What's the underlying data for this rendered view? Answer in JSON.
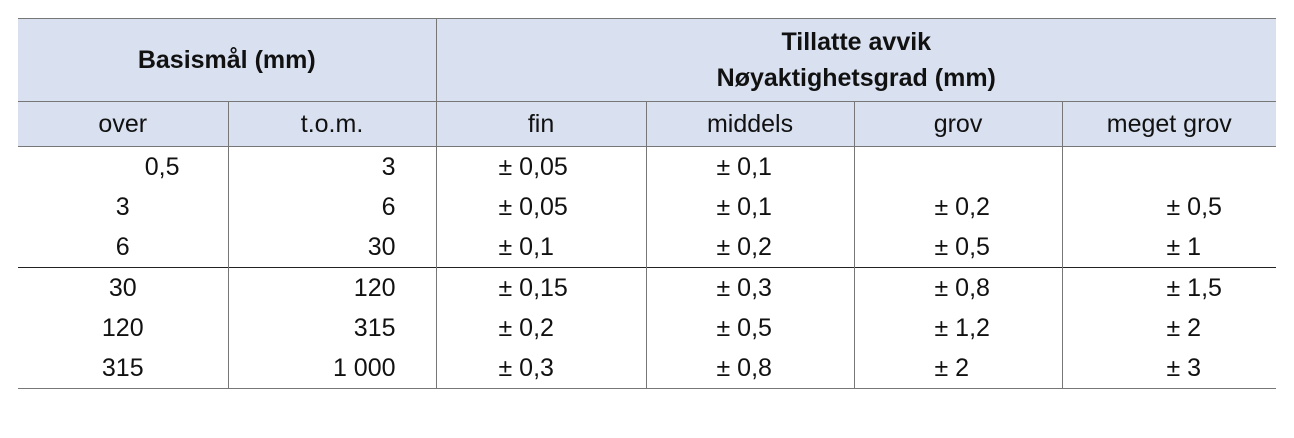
{
  "header": {
    "basis": "Basismål (mm)",
    "tillatte_line1": "Tillatte avvik",
    "tillatte_line2": "Nøyaktighetsgrad (mm)",
    "columns": [
      "over",
      "t.o.m.",
      "fin",
      "middels",
      "grov",
      "meget grov"
    ]
  },
  "rows": [
    {
      "over": "0,5",
      "tom": "3",
      "fin": "± 0,05",
      "middels": "± 0,1",
      "grov": "",
      "meget_grov": ""
    },
    {
      "over": "3",
      "tom": "6",
      "fin": "± 0,05",
      "middels": "± 0,1",
      "grov": "± 0,2",
      "meget_grov": "± 0,5"
    },
    {
      "over": "6",
      "tom": "30",
      "fin": "± 0,1",
      "middels": "± 0,2",
      "grov": "± 0,5",
      "meget_grov": "± 1"
    },
    {
      "over": "30",
      "tom": "120",
      "fin": "± 0,15",
      "middels": "± 0,3",
      "grov": "± 0,8",
      "meget_grov": "± 1,5"
    },
    {
      "over": "120",
      "tom": "315",
      "fin": "± 0,2",
      "middels": "± 0,5",
      "grov": "± 1,2",
      "meget_grov": "± 2"
    },
    {
      "over": "315",
      "tom": "1 000",
      "fin": "± 0,3",
      "middels": "± 0,8",
      "grov": "± 2",
      "meget_grov": "± 3"
    }
  ]
}
